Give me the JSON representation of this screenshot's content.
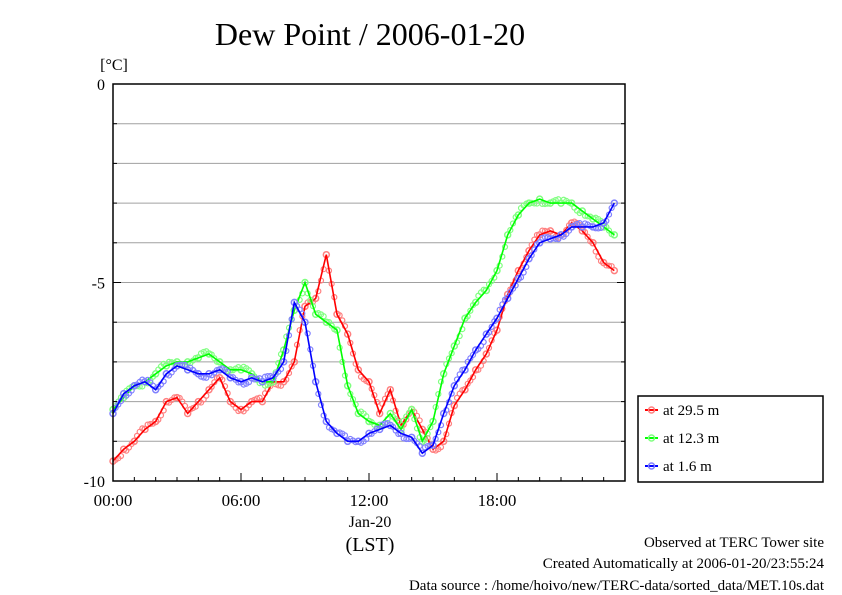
{
  "chart_data": {
    "type": "line",
    "title": "Dew Point / 2006-01-20",
    "ylabel": "[°C]",
    "xlabel": "(LST)",
    "date_label": "Jan-20",
    "ylim": [
      -10,
      0
    ],
    "xlim_hours": [
      0,
      24
    ],
    "x_ticks": [
      "00:00",
      "06:00",
      "12:00",
      "18:00"
    ],
    "y_ticks": [
      "0",
      "-5",
      "-10"
    ],
    "grid": true,
    "legend_position": "right",
    "x": [
      "00:00",
      "00:30",
      "01:00",
      "01:30",
      "02:00",
      "02:30",
      "03:00",
      "03:30",
      "04:00",
      "04:30",
      "05:00",
      "05:30",
      "06:00",
      "06:30",
      "07:00",
      "07:30",
      "08:00",
      "08:30",
      "09:00",
      "09:30",
      "10:00",
      "10:30",
      "11:00",
      "11:30",
      "12:00",
      "12:30",
      "13:00",
      "13:30",
      "14:00",
      "14:30",
      "15:00",
      "15:30",
      "16:00",
      "16:30",
      "17:00",
      "17:30",
      "18:00",
      "18:30",
      "19:00",
      "19:30",
      "20:00",
      "20:30",
      "21:00",
      "21:30",
      "22:00",
      "22:30",
      "23:00",
      "23:30"
    ],
    "series": [
      {
        "name": "at 29.5 m",
        "color": "#ff0000",
        "light_color": "#ff8080",
        "values": [
          -9.5,
          -9.2,
          -9.0,
          -8.7,
          -8.5,
          -8.0,
          -7.9,
          -8.3,
          -8.0,
          -7.7,
          -7.4,
          -8.0,
          -8.2,
          -8.0,
          -8.0,
          -7.5,
          -7.5,
          -7.0,
          -5.6,
          -5.4,
          -4.3,
          -5.8,
          -6.3,
          -7.2,
          -7.5,
          -8.3,
          -7.7,
          -8.6,
          -8.2,
          -8.7,
          -9.2,
          -9.0,
          -8.1,
          -7.7,
          -7.2,
          -6.8,
          -6.2,
          -5.3,
          -4.7,
          -4.2,
          -3.8,
          -3.7,
          -3.8,
          -3.5,
          -3.7,
          -4.0,
          -4.5,
          -4.7
        ]
      },
      {
        "name": "at 12.3 m",
        "color": "#00ff00",
        "light_color": "#80ff80",
        "values": [
          -8.2,
          -7.9,
          -7.6,
          -7.5,
          -7.3,
          -7.1,
          -7.0,
          -7.0,
          -6.9,
          -6.8,
          -7.0,
          -7.2,
          -7.2,
          -7.3,
          -7.5,
          -7.5,
          -6.7,
          -5.7,
          -5.0,
          -5.8,
          -6.0,
          -6.2,
          -7.6,
          -8.3,
          -8.5,
          -8.6,
          -8.3,
          -8.7,
          -8.2,
          -9.0,
          -8.5,
          -7.3,
          -6.6,
          -5.9,
          -5.5,
          -5.2,
          -4.7,
          -3.8,
          -3.3,
          -3.0,
          -2.9,
          -3.0,
          -3.0,
          -3.0,
          -3.2,
          -3.4,
          -3.6,
          -3.8
        ]
      },
      {
        "name": "at 1.6 m",
        "color": "#0000ff",
        "light_color": "#8080ff",
        "values": [
          -8.3,
          -7.8,
          -7.6,
          -7.5,
          -7.7,
          -7.3,
          -7.1,
          -7.2,
          -7.3,
          -7.3,
          -7.2,
          -7.4,
          -7.5,
          -7.4,
          -7.5,
          -7.4,
          -7.0,
          -5.5,
          -6.0,
          -7.5,
          -8.5,
          -8.8,
          -9.0,
          -9.0,
          -8.8,
          -8.7,
          -8.6,
          -8.8,
          -8.9,
          -9.3,
          -9.1,
          -8.3,
          -7.6,
          -7.2,
          -6.7,
          -6.3,
          -5.9,
          -5.4,
          -4.9,
          -4.4,
          -4.0,
          -3.9,
          -3.8,
          -3.6,
          -3.6,
          -3.6,
          -3.5,
          -3.0
        ]
      }
    ]
  },
  "footer": {
    "observed": "Observed at TERC Tower site",
    "created": "Created Automatically at 2006-01-20/23:55:24",
    "source": "Data source : /home/hoivo/new/TERC-data/sorted_data/MET.10s.dat"
  }
}
